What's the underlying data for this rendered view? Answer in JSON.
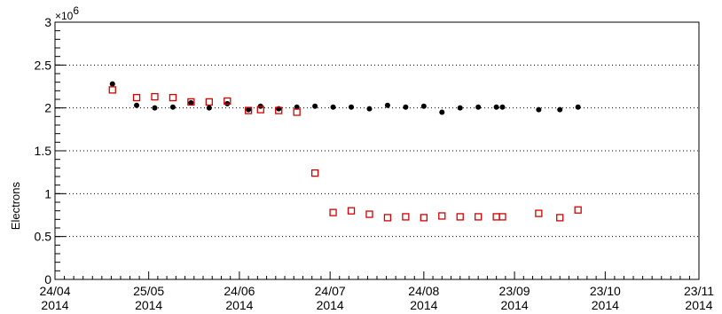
{
  "chart_data": {
    "type": "scatter",
    "ylabel": "Electrons",
    "y_multiplier_label": "×10",
    "y_multiplier_exponent": "6",
    "ylim": [
      0,
      3
    ],
    "yticks": [
      0,
      0.5,
      1,
      1.5,
      2,
      2.5,
      3
    ],
    "ytick_labels": [
      "0",
      "0.5",
      "1",
      "1.5",
      "2",
      "2.5",
      "3"
    ],
    "xlim": [
      "2014-04-24",
      "2014-11-23"
    ],
    "xtick_dates": [
      "2014-04-24",
      "2014-05-25",
      "2014-06-24",
      "2014-07-24",
      "2014-08-24",
      "2014-09-23",
      "2014-10-23",
      "2014-11-23"
    ],
    "xtick_labels": [
      [
        "24/04",
        "2014"
      ],
      [
        "25/05",
        "2014"
      ],
      [
        "24/06",
        "2014"
      ],
      [
        "24/07",
        "2014"
      ],
      [
        "24/08",
        "2014"
      ],
      [
        "23/09",
        "2014"
      ],
      [
        "23/10",
        "2014"
      ],
      [
        "23/11",
        "2014"
      ]
    ],
    "grid": {
      "horizontal_dotted": true,
      "vertical": false
    },
    "series": [
      {
        "color": "#000000",
        "marker": "filled-circle",
        "points": [
          [
            "2014-05-13",
            2.28
          ],
          [
            "2014-05-21",
            2.03
          ],
          [
            "2014-05-27",
            2.0
          ],
          [
            "2014-06-02",
            2.01
          ],
          [
            "2014-06-08",
            2.06
          ],
          [
            "2014-06-14",
            2.0
          ],
          [
            "2014-06-20",
            2.05
          ],
          [
            "2014-06-27",
            1.98
          ],
          [
            "2014-07-01",
            2.02
          ],
          [
            "2014-07-07",
            1.99
          ],
          [
            "2014-07-13",
            2.01
          ],
          [
            "2014-07-19",
            2.02
          ],
          [
            "2014-07-25",
            2.01
          ],
          [
            "2014-07-31",
            2.01
          ],
          [
            "2014-08-06",
            1.99
          ],
          [
            "2014-08-12",
            2.03
          ],
          [
            "2014-08-18",
            2.01
          ],
          [
            "2014-08-24",
            2.02
          ],
          [
            "2014-08-30",
            1.95
          ],
          [
            "2014-09-05",
            2.0
          ],
          [
            "2014-09-11",
            2.01
          ],
          [
            "2014-09-17",
            2.01
          ],
          [
            "2014-09-19",
            2.01
          ],
          [
            "2014-10-01",
            1.98
          ],
          [
            "2014-10-08",
            1.98
          ],
          [
            "2014-10-14",
            2.01
          ]
        ]
      },
      {
        "color": "#d40000",
        "marker": "open-square",
        "points": [
          [
            "2014-05-13",
            2.21
          ],
          [
            "2014-05-21",
            2.12
          ],
          [
            "2014-05-27",
            2.13
          ],
          [
            "2014-06-02",
            2.12
          ],
          [
            "2014-06-08",
            2.07
          ],
          [
            "2014-06-14",
            2.07
          ],
          [
            "2014-06-20",
            2.08
          ],
          [
            "2014-06-27",
            1.97
          ],
          [
            "2014-07-01",
            1.98
          ],
          [
            "2014-07-07",
            1.97
          ],
          [
            "2014-07-13",
            1.95
          ],
          [
            "2014-07-19",
            1.24
          ],
          [
            "2014-07-25",
            0.78
          ],
          [
            "2014-07-31",
            0.8
          ],
          [
            "2014-08-06",
            0.76
          ],
          [
            "2014-08-12",
            0.72
          ],
          [
            "2014-08-18",
            0.73
          ],
          [
            "2014-08-24",
            0.72
          ],
          [
            "2014-08-30",
            0.74
          ],
          [
            "2014-09-05",
            0.73
          ],
          [
            "2014-09-11",
            0.73
          ],
          [
            "2014-09-17",
            0.73
          ],
          [
            "2014-09-19",
            0.73
          ],
          [
            "2014-10-01",
            0.77
          ],
          [
            "2014-10-08",
            0.72
          ],
          [
            "2014-10-14",
            0.81
          ]
        ]
      }
    ]
  }
}
